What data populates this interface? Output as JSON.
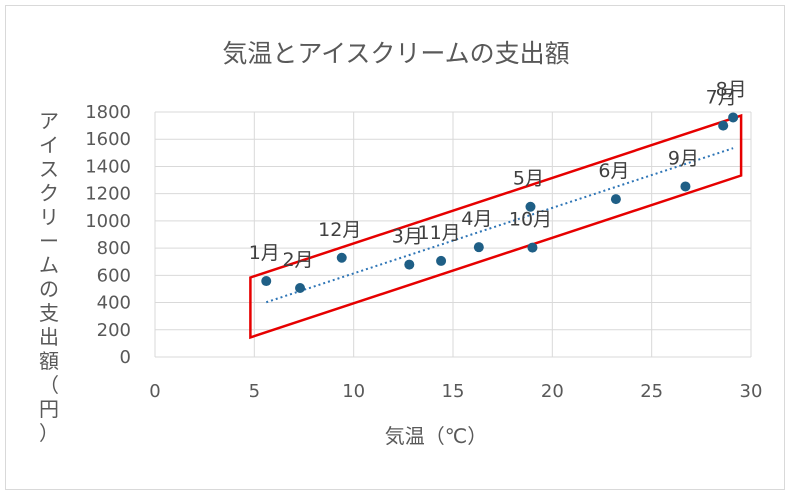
{
  "chart_data": {
    "type": "scatter",
    "title": "気温とアイスクリームの支出額",
    "xlabel": "気温（℃）",
    "ylabel": "アイスクリームの支出額（円）",
    "xlim": [
      0,
      30
    ],
    "ylim": [
      0,
      1800
    ],
    "xticks": [
      0,
      5,
      10,
      15,
      20,
      25,
      30
    ],
    "yticks": [
      0,
      200,
      400,
      600,
      800,
      1000,
      1200,
      1400,
      1600,
      1800
    ],
    "grid": true,
    "legend": "none",
    "trendline": {
      "type": "linear",
      "style": "dotted",
      "color": "#2e75b6"
    },
    "highlight": {
      "shape": "rectangle",
      "color": "#e60000",
      "note": ""
    },
    "marker_color": "#1f5f86",
    "points": [
      {
        "label": "1月",
        "x": 5.6,
        "y": 558
      },
      {
        "label": "2月",
        "x": 7.3,
        "y": 507
      },
      {
        "label": "3月",
        "x": 12.8,
        "y": 679
      },
      {
        "label": "4月",
        "x": 16.3,
        "y": 807
      },
      {
        "label": "5月",
        "x": 18.9,
        "y": 1104
      },
      {
        "label": "6月",
        "x": 23.2,
        "y": 1160
      },
      {
        "label": "7月",
        "x": 28.6,
        "y": 1700
      },
      {
        "label": "8月",
        "x": 29.1,
        "y": 1760
      },
      {
        "label": "9月",
        "x": 26.7,
        "y": 1253
      },
      {
        "label": "10月",
        "x": 19.0,
        "y": 804
      },
      {
        "label": "11月",
        "x": 14.4,
        "y": 706
      },
      {
        "label": "12月",
        "x": 9.4,
        "y": 729
      }
    ]
  }
}
